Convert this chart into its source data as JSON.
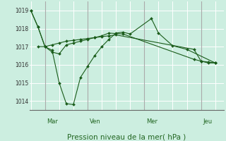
{
  "title": "Pression niveau de la mer( hPa )",
  "bg_color": "#cceee0",
  "grid_color": "#ffffff",
  "line_color": "#1a5c1a",
  "marker_color": "#1a5c1a",
  "vline_color": "#aaaaaa",
  "ylim": [
    1013.5,
    1019.5
  ],
  "yticks": [
    1014,
    1015,
    1016,
    1017,
    1018,
    1019
  ],
  "day_labels": [
    "Mar",
    "Ven",
    "Mer",
    "Jeu"
  ],
  "series": [
    {
      "xs": [
        0.0,
        0.5,
        1.0,
        1.5,
        2.0,
        2.5,
        3.0,
        3.5,
        4.0,
        4.5,
        5.0,
        5.5,
        6.5,
        11.5,
        12.0,
        12.5,
        13.0
      ],
      "ys": [
        1019.0,
        1018.1,
        1017.0,
        1016.7,
        1016.6,
        1017.1,
        1017.2,
        1017.3,
        1017.4,
        1017.5,
        1017.6,
        1017.75,
        1017.7,
        1016.3,
        1016.2,
        1016.1,
        1016.1
      ]
    },
    {
      "xs": [
        0.0,
        0.5,
        1.0,
        1.5,
        2.0,
        2.5,
        3.0,
        3.5,
        4.0,
        4.5,
        5.0,
        5.5,
        6.0,
        6.5,
        7.0,
        8.5,
        9.0,
        10.0,
        11.0,
        13.0
      ],
      "ys": [
        1019.0,
        1018.1,
        1017.0,
        1016.8,
        1015.0,
        1013.85,
        1013.8,
        1015.3,
        1015.9,
        1016.5,
        1017.0,
        1017.4,
        1017.75,
        1017.8,
        1017.7,
        1018.55,
        1017.75,
        1017.05,
        1016.85,
        1016.1
      ]
    },
    {
      "xs": [
        0.5,
        1.0,
        1.5,
        2.0,
        2.5,
        3.0,
        3.5,
        4.0,
        4.5,
        5.0,
        5.5,
        6.0,
        11.5,
        12.0,
        12.5,
        13.0
      ],
      "ys": [
        1017.0,
        1017.0,
        1017.1,
        1017.2,
        1017.3,
        1017.35,
        1017.4,
        1017.45,
        1017.5,
        1017.55,
        1017.6,
        1017.65,
        1016.85,
        1016.2,
        1016.15,
        1016.1
      ]
    }
  ]
}
